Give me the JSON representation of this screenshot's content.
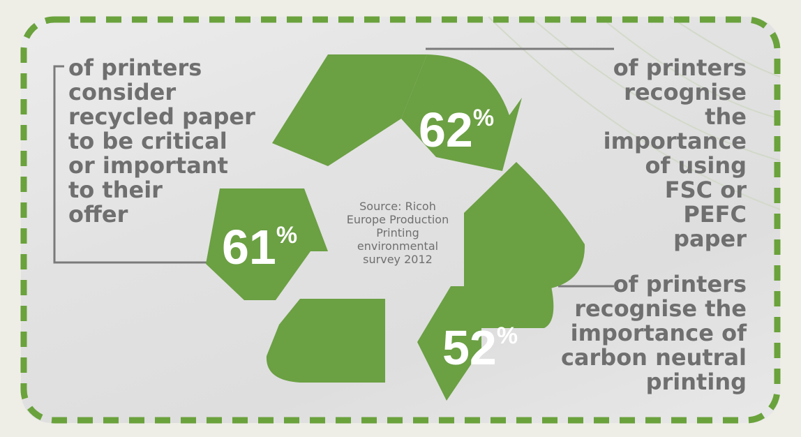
{
  "stats": [
    {
      "id": "recycled",
      "value": "61",
      "unit": "%",
      "text": "of printers\nconsider\nrecycled paper\nto be critical\nor important\nto their\noffer"
    },
    {
      "id": "fsc",
      "value": "62",
      "unit": "%",
      "text": "of printers\nrecognise the\nimportance\nof using\nFSC or\nPEFC\npaper"
    },
    {
      "id": "carbon",
      "value": "52",
      "unit": "%",
      "text": "of printers\nrecognise the\nimportance of\ncarbon neutral\nprinting"
    }
  ],
  "source": "Source: Ricoh\nEurope Production\nPrinting\nenvironmental\nsurvey 2012",
  "colors": {
    "arrow_green": "#6ba043",
    "text_gray": "#6f6f6f",
    "border_green": "#6aa23c",
    "page_background": "#eeeee6",
    "card_background": "#e2e2e2"
  },
  "icons": [
    "recycle-arrows"
  ]
}
